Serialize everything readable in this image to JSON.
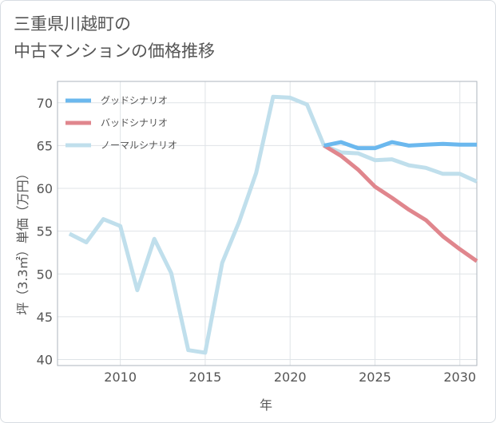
{
  "title": "三重県川越町の\n中古マンションの価格推移",
  "chart_data": {
    "type": "line",
    "xlabel": "年",
    "ylabel": "坪（3.3㎡）単価（万円）",
    "xlim": [
      2006.3,
      2031
    ],
    "ylim": [
      39.3,
      72.5
    ],
    "x_ticks": [
      2010,
      2015,
      2020,
      2025,
      2030
    ],
    "y_ticks": [
      40,
      45,
      50,
      55,
      60,
      65,
      70
    ],
    "grid": true,
    "legend_position": "top-left",
    "series": [
      {
        "name": "グッドシナリオ",
        "color": "#6bb8ee",
        "x": [
          2022,
          2023,
          2024,
          2025,
          2026,
          2027,
          2028,
          2029,
          2030,
          2031
        ],
        "y": [
          65.0,
          65.4,
          64.7,
          64.7,
          65.4,
          65.0,
          65.1,
          65.2,
          65.1,
          65.1
        ]
      },
      {
        "name": "バッドシナリオ",
        "color": "#e0868d",
        "x": [
          2022,
          2023,
          2024,
          2025,
          2026,
          2027,
          2028,
          2029,
          2030,
          2031
        ],
        "y": [
          65.0,
          63.8,
          62.2,
          60.2,
          58.9,
          57.5,
          56.3,
          54.4,
          52.9,
          51.5
        ]
      },
      {
        "name": "ノーマルシナリオ",
        "color": "#c0dfec",
        "x": [
          2007,
          2008,
          2009,
          2010,
          2011,
          2012,
          2013,
          2014,
          2015,
          2016,
          2017,
          2018,
          2019,
          2020,
          2021,
          2022,
          2023,
          2024,
          2025,
          2026,
          2027,
          2028,
          2029,
          2030,
          2031
        ],
        "y": [
          54.7,
          53.7,
          56.4,
          55.6,
          48.1,
          54.1,
          50.1,
          41.1,
          40.8,
          51.3,
          56.1,
          61.8,
          70.7,
          70.6,
          69.8,
          65.0,
          64.2,
          64.1,
          63.3,
          63.4,
          62.7,
          62.4,
          61.7,
          61.7,
          60.8
        ]
      }
    ]
  }
}
